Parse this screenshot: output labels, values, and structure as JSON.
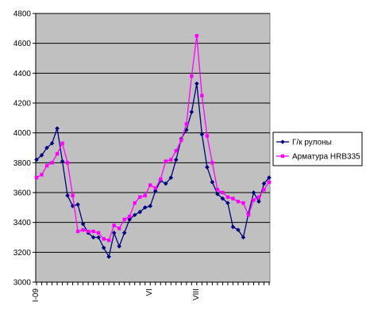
{
  "chart_data": {
    "type": "line",
    "title": "",
    "xlabel": "",
    "ylabel": "",
    "ylim": [
      3000,
      4800
    ],
    "yticks": [
      3000,
      3200,
      3400,
      3600,
      3800,
      4000,
      4200,
      4400,
      4600,
      4800
    ],
    "grid": true,
    "plot_background": "#c0c0c0",
    "legend": "right",
    "x_tick_labels": [
      {
        "label": "I-09",
        "index": 0
      },
      {
        "label": "VI",
        "index": 22
      },
      {
        "label": "VIII",
        "index": 31
      }
    ],
    "series": [
      {
        "name": "Г/к рулоны",
        "color": "#000080",
        "marker": "diamond",
        "values": [
          3820,
          3850,
          3900,
          3930,
          4030,
          3810,
          3580,
          3510,
          3520,
          3390,
          3330,
          3300,
          3300,
          3230,
          3170,
          3330,
          3240,
          3330,
          3420,
          3450,
          3470,
          3500,
          3510,
          3610,
          3680,
          3660,
          3700,
          3820,
          3960,
          4020,
          4140,
          4330,
          3990,
          3770,
          3670,
          3590,
          3560,
          3530,
          3370,
          3350,
          3300,
          3460,
          3600,
          3540,
          3660,
          3700
        ]
      },
      {
        "name": "Арматура HRB335",
        "color": "#ff00ff",
        "marker": "square",
        "values": [
          3700,
          3720,
          3780,
          3800,
          3860,
          3930,
          3800,
          3580,
          3340,
          3350,
          3340,
          3340,
          3330,
          3290,
          3280,
          3380,
          3360,
          3420,
          3440,
          3530,
          3570,
          3580,
          3650,
          3630,
          3690,
          3810,
          3820,
          3880,
          3950,
          4060,
          4380,
          4650,
          4250,
          3980,
          3800,
          3620,
          3600,
          3570,
          3560,
          3540,
          3530,
          3450,
          3550,
          3570,
          3620,
          3670
        ]
      }
    ]
  }
}
